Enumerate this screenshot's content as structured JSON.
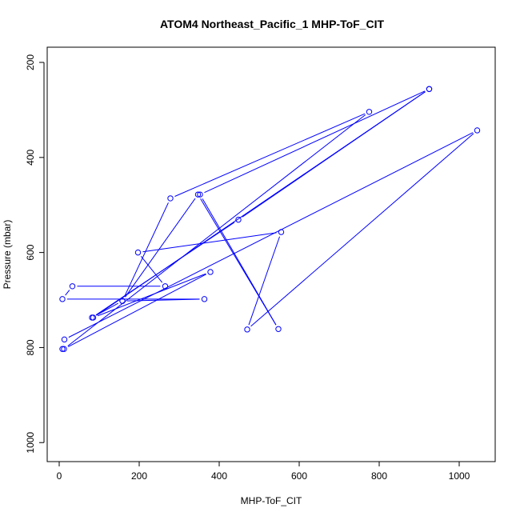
{
  "chart_data": {
    "type": "line",
    "title": "ATOM4 Northeast_Pacific_1 MHP-ToF_CIT",
    "xlabel": "MHP-ToF_CIT",
    "ylabel": "Pressure (mbar)",
    "xlim": [
      -30,
      1090
    ],
    "ylim": [
      1040,
      168
    ],
    "y_reversed": true,
    "grid": false,
    "x_ticks": [
      0,
      200,
      400,
      600,
      800,
      1000
    ],
    "y_ticks": [
      200,
      400,
      600,
      800,
      1000
    ],
    "x_tick_labels": [
      "0",
      "200",
      "400",
      "600",
      "800",
      "1000"
    ],
    "y_tick_labels": [
      "200",
      "400",
      "600",
      "800",
      "1000"
    ],
    "series": [
      {
        "color": "#0000ff",
        "markers": "open-circle",
        "x": [
          8,
          13,
          1045,
          470,
          555,
          197,
          265,
          33,
          8,
          363,
          158,
          347,
          548,
          352,
          925,
          85,
          378,
          12,
          775,
          278,
          158,
          82,
          448,
          925
        ],
        "y": [
          803,
          783,
          343,
          762,
          557,
          600,
          671,
          671,
          698,
          698,
          702,
          478,
          761,
          478,
          256,
          737,
          641,
          803,
          304,
          486,
          702,
          737,
          531,
          256
        ]
      }
    ]
  }
}
